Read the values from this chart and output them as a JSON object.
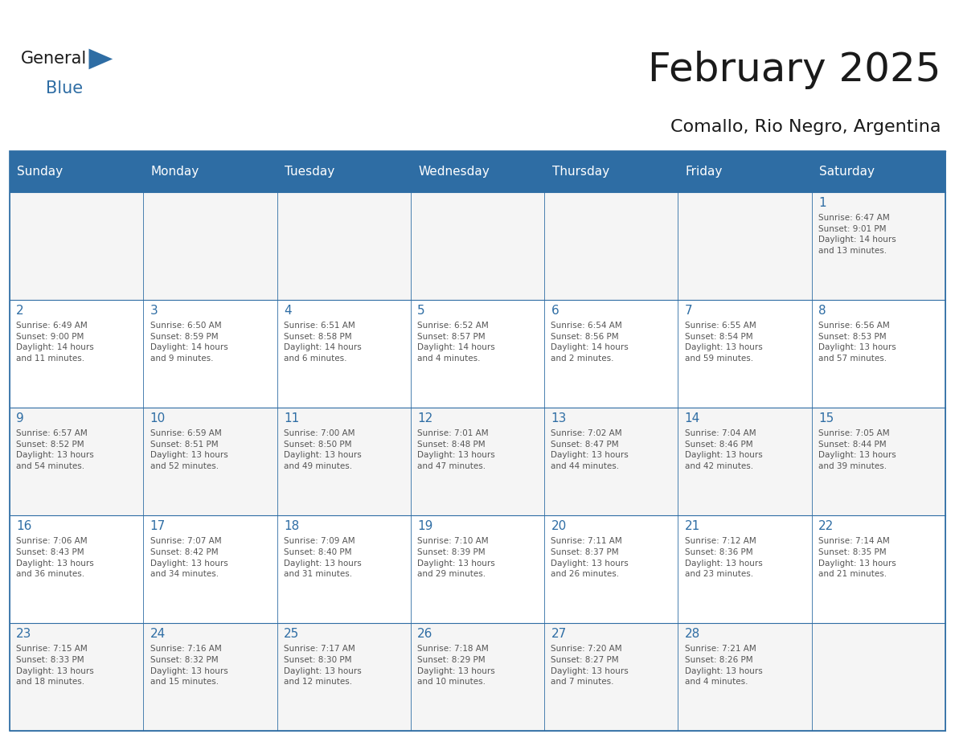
{
  "title": "February 2025",
  "subtitle": "Comallo, Rio Negro, Argentina",
  "header_bg": "#2E6DA4",
  "header_text_color": "#FFFFFF",
  "day_number_color": "#2E6DA4",
  "cell_text_color": "#555555",
  "days_of_week": [
    "Sunday",
    "Monday",
    "Tuesday",
    "Wednesday",
    "Thursday",
    "Friday",
    "Saturday"
  ],
  "weeks": [
    [
      {
        "day": null,
        "info": ""
      },
      {
        "day": null,
        "info": ""
      },
      {
        "day": null,
        "info": ""
      },
      {
        "day": null,
        "info": ""
      },
      {
        "day": null,
        "info": ""
      },
      {
        "day": null,
        "info": ""
      },
      {
        "day": 1,
        "info": "Sunrise: 6:47 AM\nSunset: 9:01 PM\nDaylight: 14 hours\nand 13 minutes."
      }
    ],
    [
      {
        "day": 2,
        "info": "Sunrise: 6:49 AM\nSunset: 9:00 PM\nDaylight: 14 hours\nand 11 minutes."
      },
      {
        "day": 3,
        "info": "Sunrise: 6:50 AM\nSunset: 8:59 PM\nDaylight: 14 hours\nand 9 minutes."
      },
      {
        "day": 4,
        "info": "Sunrise: 6:51 AM\nSunset: 8:58 PM\nDaylight: 14 hours\nand 6 minutes."
      },
      {
        "day": 5,
        "info": "Sunrise: 6:52 AM\nSunset: 8:57 PM\nDaylight: 14 hours\nand 4 minutes."
      },
      {
        "day": 6,
        "info": "Sunrise: 6:54 AM\nSunset: 8:56 PM\nDaylight: 14 hours\nand 2 minutes."
      },
      {
        "day": 7,
        "info": "Sunrise: 6:55 AM\nSunset: 8:54 PM\nDaylight: 13 hours\nand 59 minutes."
      },
      {
        "day": 8,
        "info": "Sunrise: 6:56 AM\nSunset: 8:53 PM\nDaylight: 13 hours\nand 57 minutes."
      }
    ],
    [
      {
        "day": 9,
        "info": "Sunrise: 6:57 AM\nSunset: 8:52 PM\nDaylight: 13 hours\nand 54 minutes."
      },
      {
        "day": 10,
        "info": "Sunrise: 6:59 AM\nSunset: 8:51 PM\nDaylight: 13 hours\nand 52 minutes."
      },
      {
        "day": 11,
        "info": "Sunrise: 7:00 AM\nSunset: 8:50 PM\nDaylight: 13 hours\nand 49 minutes."
      },
      {
        "day": 12,
        "info": "Sunrise: 7:01 AM\nSunset: 8:48 PM\nDaylight: 13 hours\nand 47 minutes."
      },
      {
        "day": 13,
        "info": "Sunrise: 7:02 AM\nSunset: 8:47 PM\nDaylight: 13 hours\nand 44 minutes."
      },
      {
        "day": 14,
        "info": "Sunrise: 7:04 AM\nSunset: 8:46 PM\nDaylight: 13 hours\nand 42 minutes."
      },
      {
        "day": 15,
        "info": "Sunrise: 7:05 AM\nSunset: 8:44 PM\nDaylight: 13 hours\nand 39 minutes."
      }
    ],
    [
      {
        "day": 16,
        "info": "Sunrise: 7:06 AM\nSunset: 8:43 PM\nDaylight: 13 hours\nand 36 minutes."
      },
      {
        "day": 17,
        "info": "Sunrise: 7:07 AM\nSunset: 8:42 PM\nDaylight: 13 hours\nand 34 minutes."
      },
      {
        "day": 18,
        "info": "Sunrise: 7:09 AM\nSunset: 8:40 PM\nDaylight: 13 hours\nand 31 minutes."
      },
      {
        "day": 19,
        "info": "Sunrise: 7:10 AM\nSunset: 8:39 PM\nDaylight: 13 hours\nand 29 minutes."
      },
      {
        "day": 20,
        "info": "Sunrise: 7:11 AM\nSunset: 8:37 PM\nDaylight: 13 hours\nand 26 minutes."
      },
      {
        "day": 21,
        "info": "Sunrise: 7:12 AM\nSunset: 8:36 PM\nDaylight: 13 hours\nand 23 minutes."
      },
      {
        "day": 22,
        "info": "Sunrise: 7:14 AM\nSunset: 8:35 PM\nDaylight: 13 hours\nand 21 minutes."
      }
    ],
    [
      {
        "day": 23,
        "info": "Sunrise: 7:15 AM\nSunset: 8:33 PM\nDaylight: 13 hours\nand 18 minutes."
      },
      {
        "day": 24,
        "info": "Sunrise: 7:16 AM\nSunset: 8:32 PM\nDaylight: 13 hours\nand 15 minutes."
      },
      {
        "day": 25,
        "info": "Sunrise: 7:17 AM\nSunset: 8:30 PM\nDaylight: 13 hours\nand 12 minutes."
      },
      {
        "day": 26,
        "info": "Sunrise: 7:18 AM\nSunset: 8:29 PM\nDaylight: 13 hours\nand 10 minutes."
      },
      {
        "day": 27,
        "info": "Sunrise: 7:20 AM\nSunset: 8:27 PM\nDaylight: 13 hours\nand 7 minutes."
      },
      {
        "day": 28,
        "info": "Sunrise: 7:21 AM\nSunset: 8:26 PM\nDaylight: 13 hours\nand 4 minutes."
      },
      {
        "day": null,
        "info": ""
      }
    ]
  ],
  "logo_general_color": "#1a1a1a",
  "logo_blue_color": "#2E6DA4",
  "border_color": "#2E6DA4",
  "cell_bg_even": "#F5F5F5",
  "cell_bg_odd": "#FFFFFF"
}
